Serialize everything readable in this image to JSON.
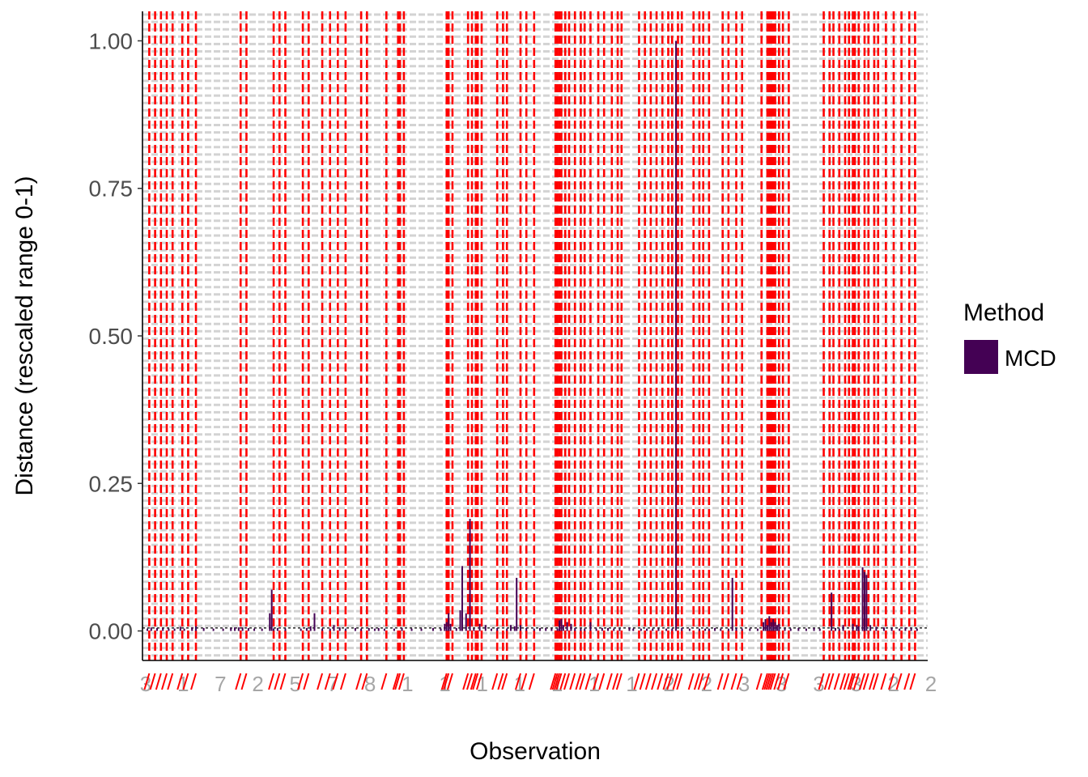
{
  "chart_data": {
    "type": "bar",
    "xlabel": "Observation",
    "ylabel": "Distance (rescaled range 0-1)",
    "ylim": [
      -0.05,
      1.05
    ],
    "y_ticks": [
      0.0,
      0.25,
      0.5,
      0.75,
      1.0
    ],
    "y_tick_labels": [
      "0.00",
      "0.25",
      "0.50",
      "0.75",
      "1.00"
    ],
    "n_observations": 400,
    "threshold": 0.005,
    "grid": true,
    "legend": {
      "title": "Method",
      "position": "right",
      "entries": [
        {
          "label": "MCD",
          "color": "#440154"
        }
      ]
    },
    "colors": {
      "bar": "#440154",
      "outlier_line": "#ff0000",
      "grid": "#d3d3d3",
      "tick_label": "#a6a6a6"
    },
    "outliers": [
      2,
      5,
      8,
      11,
      14,
      19,
      22,
      26,
      49,
      52,
      66,
      69,
      72,
      81,
      84,
      91,
      95,
      99,
      103,
      111,
      114,
      124,
      130,
      131,
      133,
      155,
      156,
      158,
      166,
      168,
      170,
      171,
      173,
      181,
      184,
      186,
      193,
      196,
      200,
      211,
      212,
      213,
      214,
      216,
      218,
      221,
      224,
      226,
      229,
      233,
      236,
      240,
      243,
      245,
      254,
      257,
      260,
      263,
      266,
      269,
      271,
      274,
      276,
      282,
      285,
      287,
      290,
      297,
      300,
      304,
      307,
      317,
      320,
      321,
      322,
      323,
      324,
      326,
      328,
      331,
      349,
      352,
      354,
      357,
      360,
      362,
      364,
      365,
      367,
      370,
      372,
      375,
      377,
      381,
      385,
      389,
      393,
      396
    ],
    "values": [
      [
        1,
        0.004
      ],
      [
        3,
        0.006
      ],
      [
        6,
        0.005
      ],
      [
        9,
        0.005
      ],
      [
        12,
        0.004
      ],
      [
        15,
        0.004
      ],
      [
        18,
        0.007
      ],
      [
        20,
        0.004
      ],
      [
        24,
        0.006
      ],
      [
        26,
        0.008
      ],
      [
        30,
        0.005
      ],
      [
        35,
        0.004
      ],
      [
        40,
        0.004
      ],
      [
        44,
        0.005
      ],
      [
        46,
        0.006
      ],
      [
        48,
        0.006
      ],
      [
        50,
        0.006
      ],
      [
        53,
        0.005
      ],
      [
        56,
        0.004
      ],
      [
        60,
        0.004
      ],
      [
        64,
        0.03
      ],
      [
        65,
        0.07
      ],
      [
        66,
        0.004
      ],
      [
        68,
        0.005
      ],
      [
        72,
        0.004
      ],
      [
        80,
        0.004
      ],
      [
        83,
        0.005
      ],
      [
        85,
        0.008
      ],
      [
        87,
        0.03
      ],
      [
        91,
        0.004
      ],
      [
        95,
        0.004
      ],
      [
        97,
        0.01
      ],
      [
        100,
        0.006
      ],
      [
        103,
        0.004
      ],
      [
        108,
        0.005
      ],
      [
        111,
        0.004
      ],
      [
        115,
        0.005
      ],
      [
        118,
        0.004
      ],
      [
        120,
        0.005
      ],
      [
        123,
        0.004
      ],
      [
        128,
        0.004
      ],
      [
        132,
        0.005
      ],
      [
        137,
        0.004
      ],
      [
        142,
        0.004
      ],
      [
        148,
        0.005
      ],
      [
        152,
        0.004
      ],
      [
        154,
        0.012
      ],
      [
        155,
        0.015
      ],
      [
        156,
        0.03
      ],
      [
        157,
        0.012
      ],
      [
        160,
        0.005
      ],
      [
        162,
        0.035
      ],
      [
        163,
        0.11
      ],
      [
        165,
        0.03
      ],
      [
        167,
        0.19
      ],
      [
        169,
        0.004
      ],
      [
        172,
        0.012
      ],
      [
        175,
        0.01
      ],
      [
        178,
        0.004
      ],
      [
        181,
        0.005
      ],
      [
        186,
        0.004
      ],
      [
        188,
        0.01
      ],
      [
        190,
        0.008
      ],
      [
        191,
        0.09
      ],
      [
        193,
        0.01
      ],
      [
        196,
        0.005
      ],
      [
        200,
        0.004
      ],
      [
        203,
        0.005
      ],
      [
        206,
        0.005
      ],
      [
        209,
        0.004
      ],
      [
        212,
        0.004
      ],
      [
        213,
        0.018
      ],
      [
        214,
        0.02
      ],
      [
        215,
        0.01
      ],
      [
        217,
        0.015
      ],
      [
        219,
        0.012
      ],
      [
        221,
        0.005
      ],
      [
        224,
        0.004
      ],
      [
        226,
        0.004
      ],
      [
        229,
        0.015
      ],
      [
        232,
        0.004
      ],
      [
        235,
        0.005
      ],
      [
        238,
        0.005
      ],
      [
        241,
        0.004
      ],
      [
        244,
        0.004
      ],
      [
        249,
        0.006
      ],
      [
        251,
        0.004
      ],
      [
        255,
        0.004
      ],
      [
        258,
        0.004
      ],
      [
        261,
        0.004
      ],
      [
        264,
        0.004
      ],
      [
        268,
        0.004
      ],
      [
        271,
        0.004
      ],
      [
        273,
        1.0
      ],
      [
        276,
        0.005
      ],
      [
        280,
        0.004
      ],
      [
        285,
        0.004
      ],
      [
        288,
        0.004
      ],
      [
        290,
        0.004
      ],
      [
        293,
        0.005
      ],
      [
        296,
        0.004
      ],
      [
        300,
        0.004
      ],
      [
        302,
        0.09
      ],
      [
        304,
        0.005
      ],
      [
        307,
        0.004
      ],
      [
        311,
        0.004
      ],
      [
        315,
        0.004
      ],
      [
        318,
        0.015
      ],
      [
        319,
        0.02
      ],
      [
        320,
        0.01
      ],
      [
        321,
        0.025
      ],
      [
        322,
        0.015
      ],
      [
        323,
        0.02
      ],
      [
        324,
        0.015
      ],
      [
        325,
        0.01
      ],
      [
        326,
        0.012
      ],
      [
        329,
        0.004
      ],
      [
        332,
        0.004
      ],
      [
        336,
        0.005
      ],
      [
        340,
        0.004
      ],
      [
        344,
        0.005
      ],
      [
        347,
        0.004
      ],
      [
        353,
        0.065
      ],
      [
        355,
        0.005
      ],
      [
        357,
        0.004
      ],
      [
        359,
        0.01
      ],
      [
        364,
        0.012
      ],
      [
        366,
        0.01
      ],
      [
        367,
        0.008
      ],
      [
        369,
        0.108
      ],
      [
        370,
        0.1
      ],
      [
        371,
        0.095
      ],
      [
        373,
        0.01
      ],
      [
        376,
        0.007
      ],
      [
        380,
        0.006
      ],
      [
        384,
        0.005
      ],
      [
        388,
        0.004
      ],
      [
        391,
        0.006
      ],
      [
        394,
        0.005
      ],
      [
        397,
        0.004
      ]
    ],
    "x_tick_labels_visible": [
      "3",
      "1",
      "7",
      "2",
      "5",
      "7",
      "8",
      "1",
      "1",
      "1",
      "1",
      "1",
      "1",
      "1",
      "2",
      "2",
      "3",
      "3",
      "3",
      "3",
      "2",
      "2"
    ]
  }
}
